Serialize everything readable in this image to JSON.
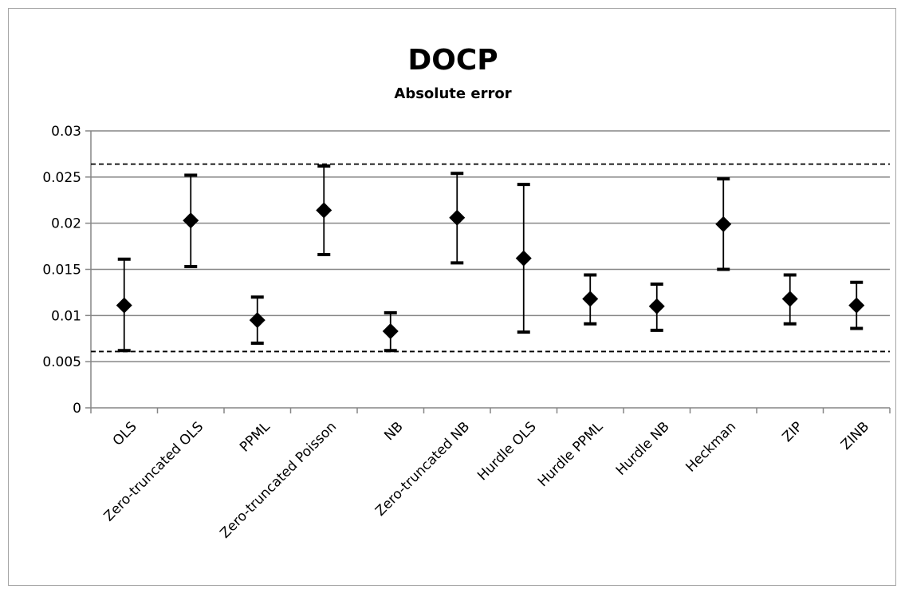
{
  "chart_data": {
    "type": "scatter",
    "title": "DOCP",
    "subtitle": "Absolute error",
    "xlabel": "",
    "ylabel": "",
    "ylim": [
      0,
      0.03
    ],
    "yticks": [
      "0",
      "0.005",
      "0.01",
      "0.015",
      "0.02",
      "0.025",
      "0.03"
    ],
    "grid": true,
    "legend": "none",
    "categories": [
      "OLS",
      "Zero-truncated OLS",
      "PPML",
      "Zero-truncated Poisson",
      "NB",
      "Zero-truncated NB",
      "Hurdle OLS",
      "Hurdle PPML",
      "Hurdle NB",
      "Heckman",
      "ZIP",
      "ZINB"
    ],
    "values": [
      0.0111,
      0.0203,
      0.0095,
      0.0214,
      0.0083,
      0.0206,
      0.0162,
      0.0118,
      0.011,
      0.0199,
      0.0118,
      0.0111
    ],
    "upper": [
      0.0161,
      0.0252,
      0.012,
      0.0262,
      0.0103,
      0.0254,
      0.0242,
      0.0144,
      0.0134,
      0.0248,
      0.0144,
      0.0136
    ],
    "lower": [
      0.0062,
      0.0153,
      0.007,
      0.0166,
      0.0062,
      0.0157,
      0.0082,
      0.0091,
      0.0084,
      0.015,
      0.0091,
      0.0086
    ],
    "reference_lines": [
      0.0264,
      0.0061
    ],
    "colors": {
      "marker": "#000000",
      "grid": "#868686",
      "reference": "#000000"
    }
  }
}
